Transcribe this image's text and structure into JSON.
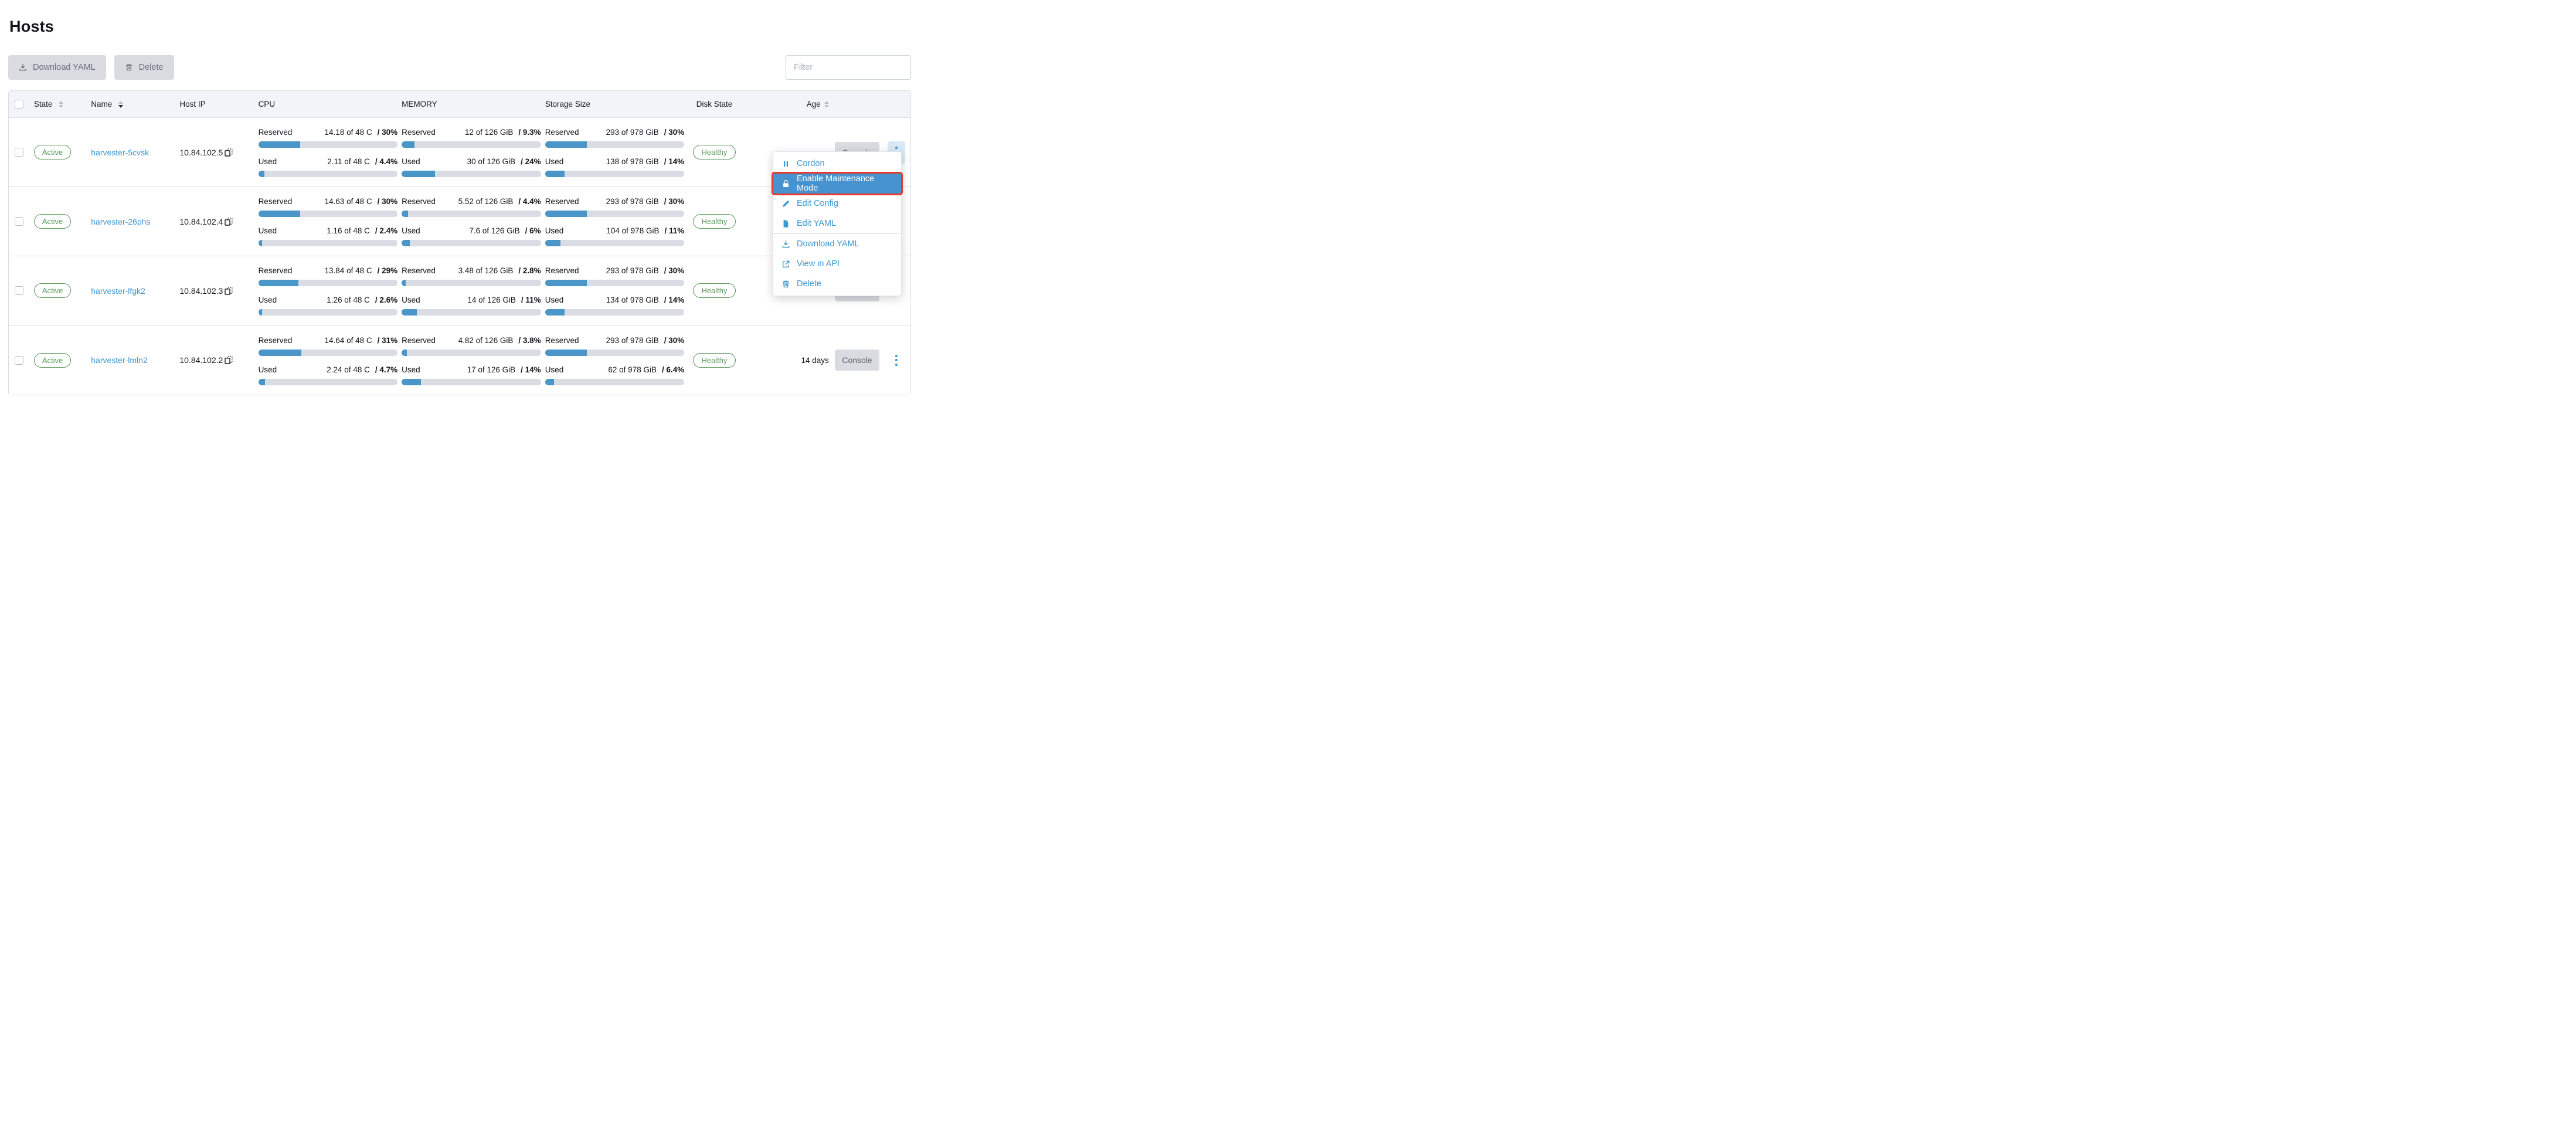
{
  "page": {
    "title": "Hosts"
  },
  "toolbar": {
    "download_yaml_label": "Download YAML",
    "delete_label": "Delete",
    "filter_placeholder": "Filter"
  },
  "table": {
    "headers": {
      "state": "State",
      "name": "Name",
      "host_ip": "Host IP",
      "cpu": "CPU",
      "memory": "MEMORY",
      "storage": "Storage Size",
      "disk_state": "Disk State",
      "age": "Age"
    },
    "meter_labels": {
      "reserved": "Reserved",
      "used": "Used"
    },
    "console_label": "Console",
    "rows": [
      {
        "state": "Active",
        "name": "harvester-5cvsk",
        "host_ip": "10.84.102.5",
        "cpu": {
          "reserved": {
            "amount": "14.18 of 48 C",
            "pct_text": "/ 30%",
            "pct": 30
          },
          "used": {
            "amount": "2.11 of 48 C",
            "pct_text": "/ 4.4%",
            "pct": 4.4
          }
        },
        "memory": {
          "reserved": {
            "amount": "12 of 126 GiB",
            "pct_text": "/ 9.3%",
            "pct": 9.3
          },
          "used": {
            "amount": "30 of 126 GiB",
            "pct_text": "/ 24%",
            "pct": 24
          }
        },
        "storage": {
          "reserved": {
            "amount": "293 of 978 GiB",
            "pct_text": "/ 30%",
            "pct": 30
          },
          "used": {
            "amount": "138 of 978 GiB",
            "pct_text": "/ 14%",
            "pct": 14
          }
        },
        "disk_state": "Healthy",
        "age": ""
      },
      {
        "state": "Active",
        "name": "harvester-26phs",
        "host_ip": "10.84.102.4",
        "cpu": {
          "reserved": {
            "amount": "14.63 of 48 C",
            "pct_text": "/ 30%",
            "pct": 30
          },
          "used": {
            "amount": "1.16 of 48 C",
            "pct_text": "/ 2.4%",
            "pct": 2.4
          }
        },
        "memory": {
          "reserved": {
            "amount": "5.52 of 126 GiB",
            "pct_text": "/ 4.4%",
            "pct": 4.4
          },
          "used": {
            "amount": "7.6 of 126 GiB",
            "pct_text": "/ 6%",
            "pct": 6
          }
        },
        "storage": {
          "reserved": {
            "amount": "293 of 978 GiB",
            "pct_text": "/ 30%",
            "pct": 30
          },
          "used": {
            "amount": "104 of 978 GiB",
            "pct_text": "/ 11%",
            "pct": 11
          }
        },
        "disk_state": "Healthy",
        "age": ""
      },
      {
        "state": "Active",
        "name": "harvester-lfgk2",
        "host_ip": "10.84.102.3",
        "cpu": {
          "reserved": {
            "amount": "13.84 of 48 C",
            "pct_text": "/ 29%",
            "pct": 29
          },
          "used": {
            "amount": "1.26 of 48 C",
            "pct_text": "/ 2.6%",
            "pct": 2.6
          }
        },
        "memory": {
          "reserved": {
            "amount": "3.48 of 126 GiB",
            "pct_text": "/ 2.8%",
            "pct": 2.8
          },
          "used": {
            "amount": "14 of 126 GiB",
            "pct_text": "/ 11%",
            "pct": 11
          }
        },
        "storage": {
          "reserved": {
            "amount": "293 of 978 GiB",
            "pct_text": "/ 30%",
            "pct": 30
          },
          "used": {
            "amount": "134 of 978 GiB",
            "pct_text": "/ 14%",
            "pct": 14
          }
        },
        "disk_state": "Healthy",
        "age": ""
      },
      {
        "state": "Active",
        "name": "harvester-lmln2",
        "host_ip": "10.84.102.2",
        "cpu": {
          "reserved": {
            "amount": "14.64 of 48 C",
            "pct_text": "/ 31%",
            "pct": 31
          },
          "used": {
            "amount": "2.24 of 48 C",
            "pct_text": "/ 4.7%",
            "pct": 4.7
          }
        },
        "memory": {
          "reserved": {
            "amount": "4.82 of 126 GiB",
            "pct_text": "/ 3.8%",
            "pct": 3.8
          },
          "used": {
            "amount": "17 of 126 GiB",
            "pct_text": "/ 14%",
            "pct": 14
          }
        },
        "storage": {
          "reserved": {
            "amount": "293 of 978 GiB",
            "pct_text": "/ 30%",
            "pct": 30
          },
          "used": {
            "amount": "62 of 978 GiB",
            "pct_text": "/ 6.4%",
            "pct": 6.4
          }
        },
        "disk_state": "Healthy",
        "age": "14 days"
      }
    ]
  },
  "context_menu": {
    "items": [
      {
        "label": "Cordon",
        "icon": "pause-icon"
      },
      {
        "label": "Enable Maintenance Mode",
        "icon": "lock-icon",
        "highlighted": true
      },
      {
        "label": "Edit Config",
        "icon": "pencil-icon"
      },
      {
        "label": "Edit YAML",
        "icon": "file-icon"
      },
      {
        "label": "Download YAML",
        "icon": "download-icon",
        "divider_before": true
      },
      {
        "label": "View in API",
        "icon": "external-link-icon"
      },
      {
        "label": "Delete",
        "icon": "trash-icon"
      }
    ]
  },
  "colors": {
    "primary_blue": "#3d98d3",
    "bar_fill": "#4a96c8",
    "bar_track": "#dadce3",
    "success_green": "#5d9a5d",
    "menu_highlight_bg": "#4693cf",
    "annotation_red": "#e8392b",
    "header_bg": "#f3f4f9"
  }
}
